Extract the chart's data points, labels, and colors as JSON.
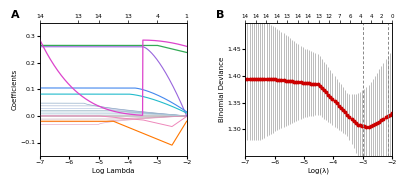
{
  "panel_A": {
    "label": "A",
    "xlabel": "Log Lambda",
    "ylabel": "Coefficients",
    "xlim": [
      -7,
      -2
    ],
    "ylim": [
      -0.15,
      0.35
    ],
    "xticks": [
      -7,
      -6,
      -5,
      -4,
      -3,
      -2
    ],
    "yticks": [
      -0.1,
      0.0,
      0.1,
      0.2,
      0.3
    ],
    "top_tick_positions": [
      -7.0,
      -5.7,
      -5.0,
      -4.0,
      -3.0,
      -2.0
    ],
    "top_tick_labels": [
      "14",
      "13",
      "14",
      "13",
      "4",
      "1"
    ]
  },
  "panel_B": {
    "label": "B",
    "xlabel": "Log(λ)",
    "ylabel": "Binomial Deviance",
    "xlim": [
      -7,
      -2
    ],
    "ylim": [
      1.25,
      1.5
    ],
    "xticks": [
      -7,
      -6,
      -5,
      -4,
      -3,
      -2
    ],
    "yticks": [
      1.3,
      1.35,
      1.4,
      1.45
    ],
    "top_ticks_labels": [
      "14",
      "14",
      "14",
      "14",
      "13",
      "14",
      "14",
      "13",
      "12",
      "7",
      "6",
      "4",
      "4",
      "2",
      "0"
    ],
    "vline1": -3.0,
    "vline2": -2.15,
    "dot_color": "#cc0000",
    "ci_color": "#bbbbbb"
  }
}
